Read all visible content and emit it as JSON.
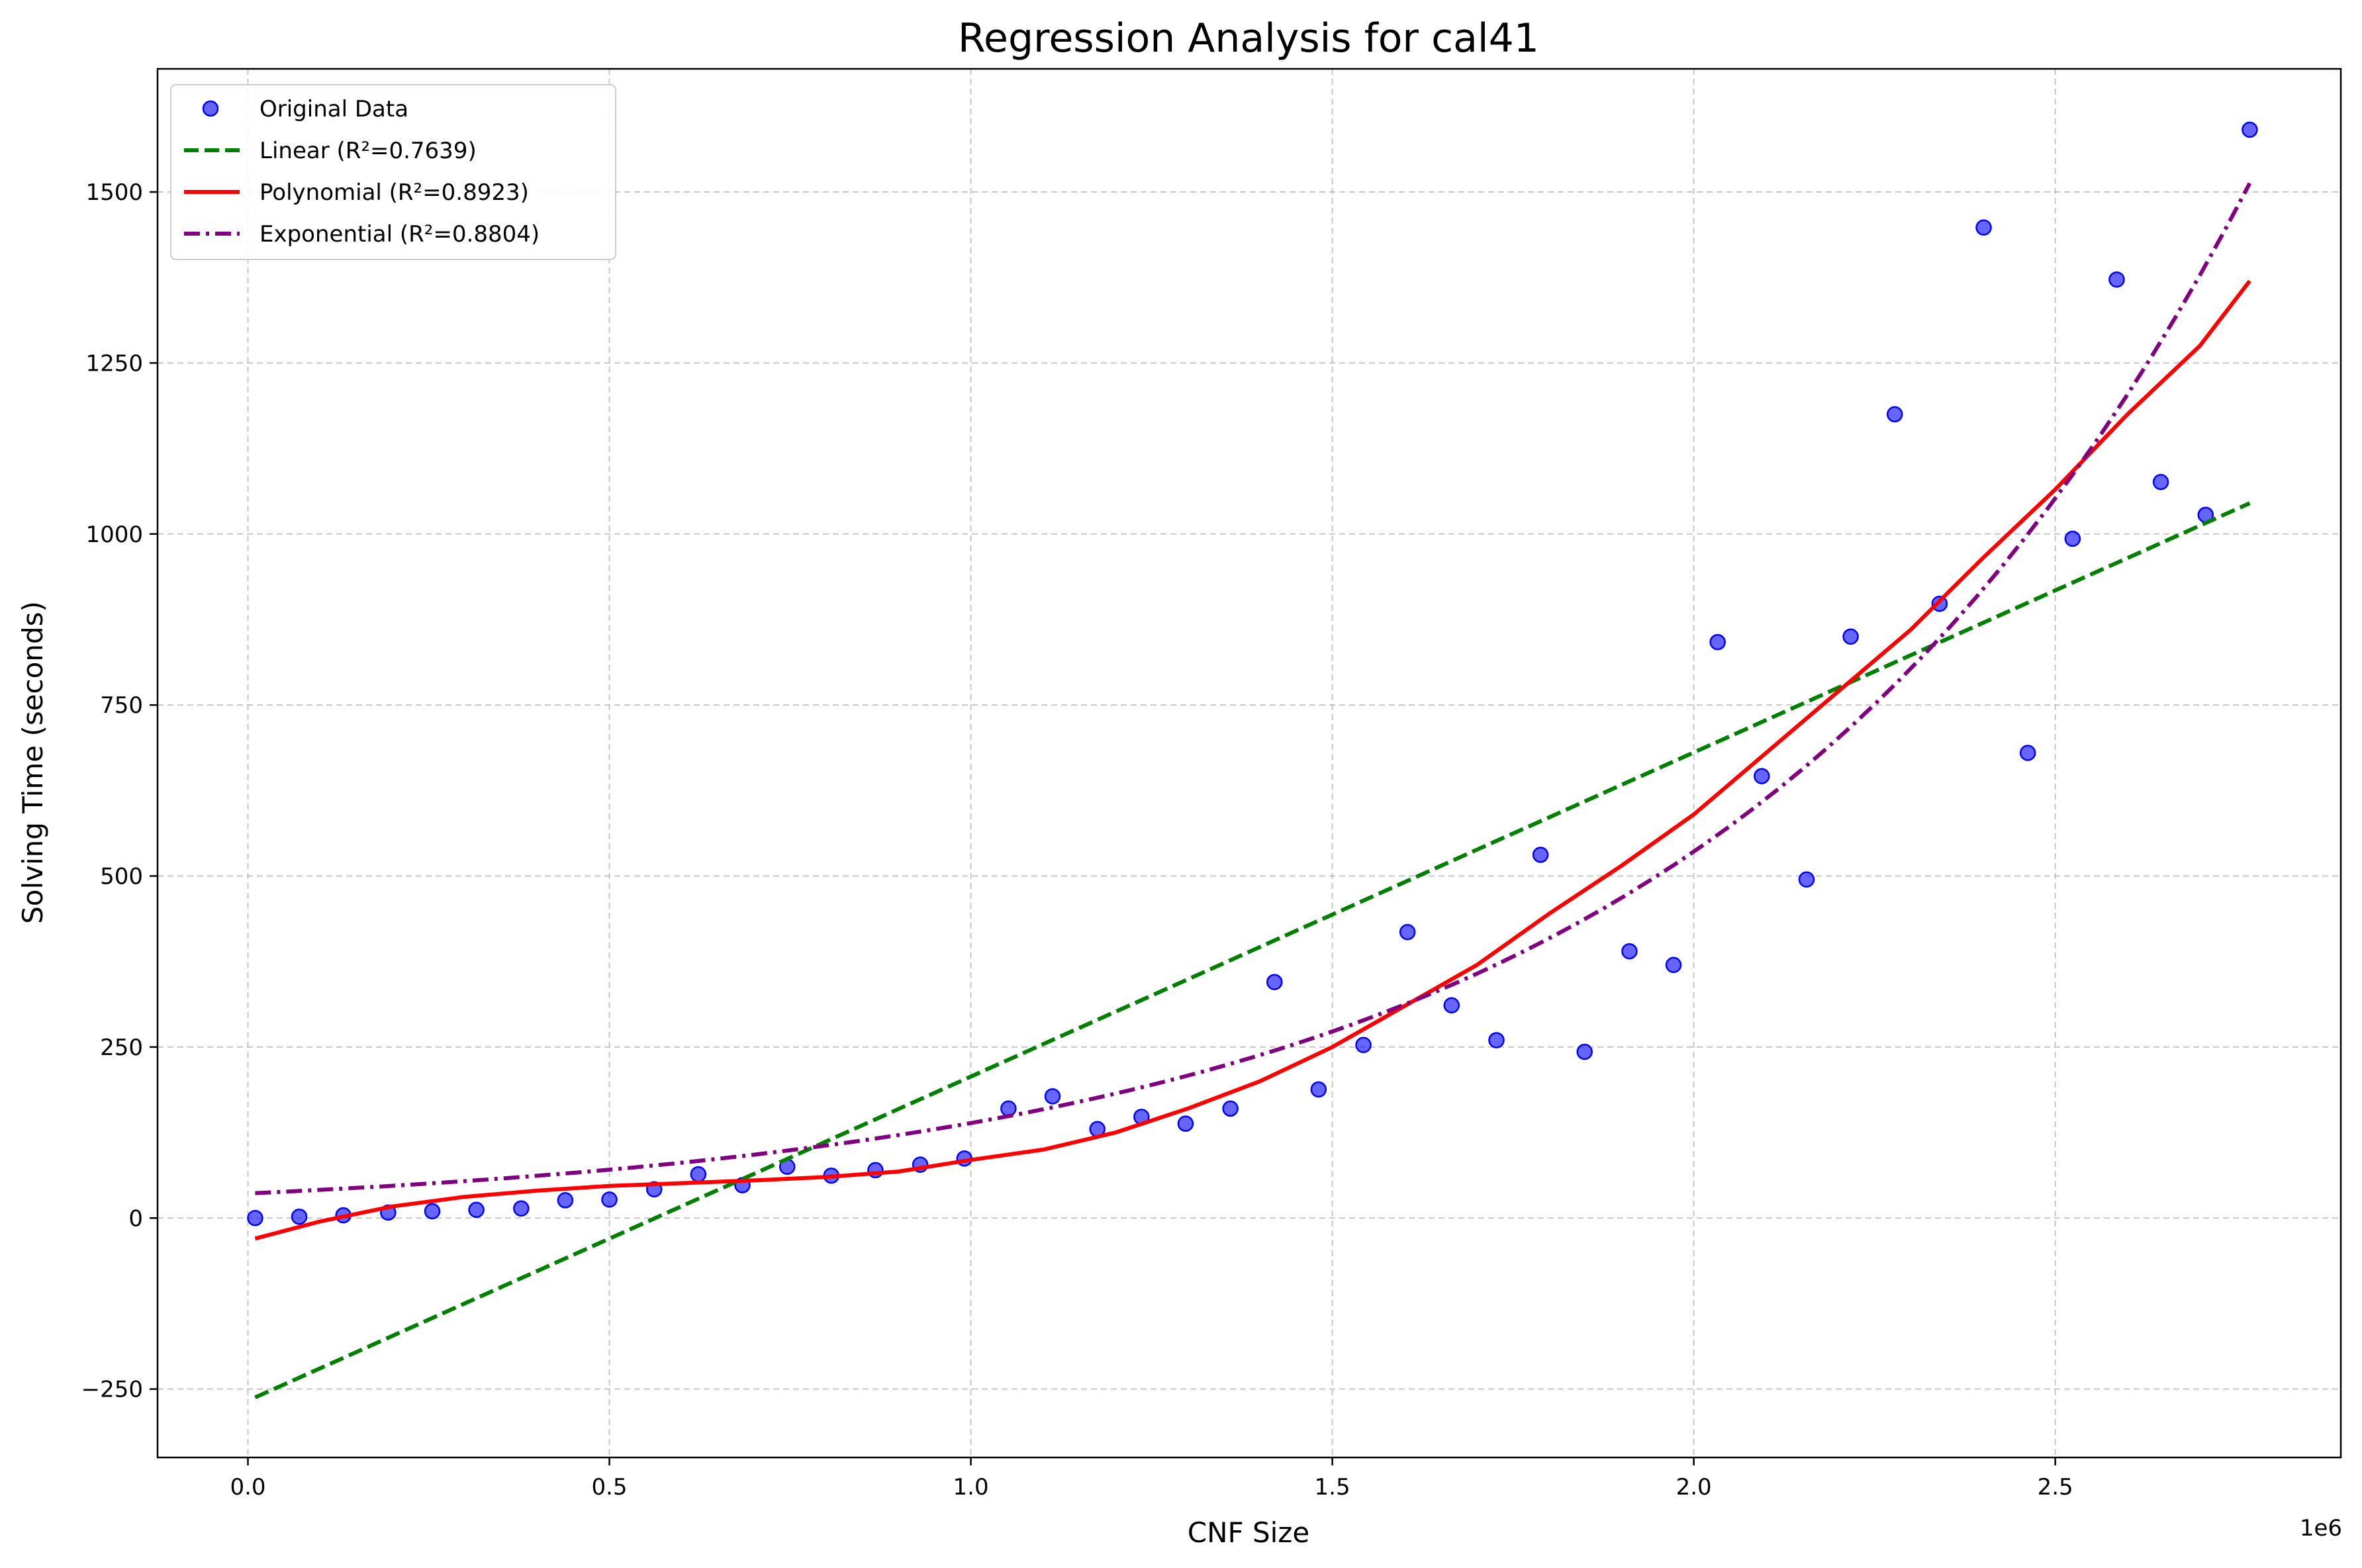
{
  "chart_data": {
    "type": "scatter",
    "title": "Regression Analysis for cal41",
    "xlabel": "CNF Size",
    "ylabel": "Solving Time (seconds)",
    "x_offset_label": "1e6",
    "xlim": [
      -0.125,
      2.895
    ],
    "ylim": [
      -350,
      1680
    ],
    "x_ticks": [
      0.0,
      0.5,
      1.0,
      1.5,
      2.0,
      2.5
    ],
    "x_tick_labels": [
      "0.0",
      "0.5",
      "1.0",
      "1.5",
      "2.0",
      "2.5"
    ],
    "y_ticks": [
      -250,
      0,
      250,
      500,
      750,
      1000,
      1250,
      1500
    ],
    "y_tick_labels": [
      "−250",
      "0",
      "250",
      "500",
      "750",
      "1000",
      "1250",
      "1500"
    ],
    "grid": true,
    "legend_position": "top-left",
    "series": [
      {
        "name": "Original Data",
        "kind": "scatter",
        "color": "#0000ff",
        "x": [
          0.01,
          0.071,
          0.132,
          0.194,
          0.255,
          0.316,
          0.378,
          0.439,
          0.5,
          0.562,
          0.623,
          0.684,
          0.746,
          0.807,
          0.868,
          0.93,
          0.991,
          1.052,
          1.113,
          1.175,
          1.236,
          1.297,
          1.359,
          1.42,
          1.481,
          1.543,
          1.604,
          1.665,
          1.727,
          1.788,
          1.849,
          1.911,
          1.972,
          2.033,
          2.094,
          2.156,
          2.217,
          2.278,
          2.34,
          2.401,
          2.462,
          2.524,
          2.585,
          2.646,
          2.708,
          2.769
        ],
        "y": [
          0,
          2,
          4,
          8,
          10,
          12,
          14,
          26,
          27,
          42,
          64,
          48,
          75,
          62,
          70,
          78,
          87,
          160,
          178,
          130,
          148,
          138,
          160,
          345,
          188,
          253,
          418,
          311,
          260,
          531,
          243,
          390,
          370,
          842,
          646,
          495,
          850,
          1175,
          898,
          1448,
          680,
          993,
          1372,
          1076,
          1028,
          1591
        ]
      },
      {
        "name": "Linear (R²=0.7639)",
        "kind": "line",
        "style": "dashed",
        "color": "#008000",
        "equation": {
          "slope": 473.8,
          "intercept": -267.0
        }
      },
      {
        "name": "Polynomial (R²=0.8923)",
        "kind": "line",
        "style": "solid",
        "color": "#ff0000",
        "x": [
          0.01,
          0.1,
          0.2,
          0.3,
          0.4,
          0.5,
          0.6,
          0.7,
          0.8,
          0.9,
          1.0,
          1.1,
          1.2,
          1.3,
          1.4,
          1.5,
          1.6,
          1.7,
          1.8,
          1.9,
          2.0,
          2.1,
          2.2,
          2.3,
          2.4,
          2.5,
          2.6,
          2.7,
          2.769
        ],
        "y": [
          -30,
          -5,
          17,
          31,
          40,
          47,
          51,
          55,
          60,
          68,
          85,
          100,
          125,
          160,
          200,
          250,
          310,
          370,
          445,
          515,
          590,
          680,
          770,
          860,
          965,
          1065,
          1175,
          1275,
          1370
        ]
      },
      {
        "name": "Exponential (R²=0.8804)",
        "kind": "line",
        "style": "dashdot",
        "color": "#800080",
        "equation": {
          "a": 36.0,
          "b": 1.35
        }
      }
    ]
  }
}
